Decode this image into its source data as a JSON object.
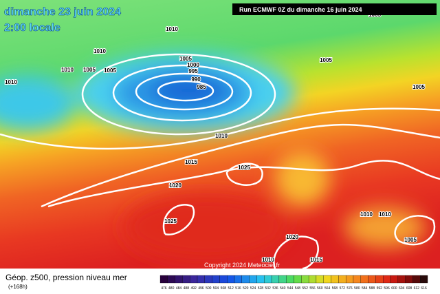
{
  "header": {
    "date": "dimanche 23 juin 2024",
    "time": "2:00 locale",
    "run": "Run ECMWF 0Z du dimanche 16 juin 2024"
  },
  "isobar_labels": [
    "1010",
    "1010",
    "1010",
    "1005",
    "1005",
    "1010",
    "1005",
    "1000",
    "995",
    "990",
    "985",
    "1010",
    "1015",
    "1020",
    "1025",
    "1025",
    "1005",
    "1005",
    "1005",
    "1010",
    "1010",
    "1020",
    "1005",
    "1015",
    "1010"
  ],
  "copyright": "Copyright 2024 Meteociel.fr",
  "legend": {
    "title": "Géop. z500, pression niveau mer",
    "subtitle": "(+168h)",
    "scale": [
      476,
      480,
      484,
      488,
      492,
      496,
      500,
      504,
      508,
      512,
      516,
      520,
      524,
      528,
      532,
      536,
      540,
      544,
      548,
      552,
      556,
      560,
      564,
      568,
      572,
      576,
      580,
      584,
      588,
      592,
      596,
      600,
      604,
      608,
      612,
      616
    ]
  }
}
